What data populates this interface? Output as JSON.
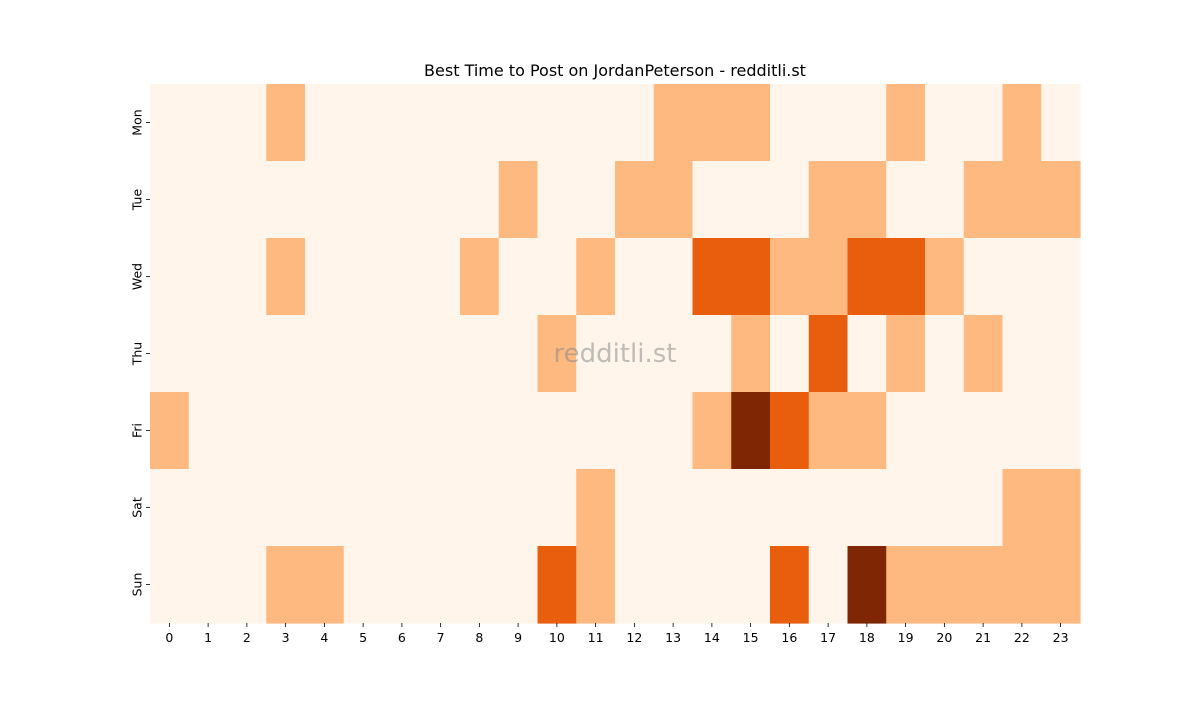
{
  "chart_data": {
    "type": "heatmap",
    "title": "Best Time to Post on JordanPeterson - redditli.st",
    "xlabel": "",
    "ylabel": "",
    "x_categories": [
      "0",
      "1",
      "2",
      "3",
      "4",
      "5",
      "6",
      "7",
      "8",
      "9",
      "10",
      "11",
      "12",
      "13",
      "14",
      "15",
      "16",
      "17",
      "18",
      "19",
      "20",
      "21",
      "22",
      "23"
    ],
    "y_categories": [
      "Mon",
      "Tue",
      "Wed",
      "Thu",
      "Fri",
      "Sat",
      "Sun"
    ],
    "values": [
      [
        0,
        0,
        0,
        1,
        0,
        0,
        0,
        0,
        0,
        0,
        0,
        0,
        0,
        1,
        1,
        1,
        0,
        0,
        0,
        1,
        0,
        0,
        1,
        0
      ],
      [
        0,
        0,
        0,
        0,
        0,
        0,
        0,
        0,
        0,
        1,
        0,
        0,
        1,
        1,
        0,
        0,
        0,
        1,
        1,
        0,
        0,
        1,
        1,
        1
      ],
      [
        0,
        0,
        0,
        1,
        0,
        0,
        0,
        0,
        1,
        0,
        0,
        1,
        0,
        0,
        2,
        2,
        1,
        1,
        2,
        2,
        1,
        0,
        0,
        0
      ],
      [
        0,
        0,
        0,
        0,
        0,
        0,
        0,
        0,
        0,
        0,
        1,
        0,
        0,
        0,
        0,
        1,
        0,
        2,
        0,
        1,
        0,
        1,
        0,
        0
      ],
      [
        1,
        0,
        0,
        0,
        0,
        0,
        0,
        0,
        0,
        0,
        0,
        0,
        0,
        0,
        1,
        3,
        2,
        1,
        1,
        0,
        0,
        0,
        0,
        0
      ],
      [
        0,
        0,
        0,
        0,
        0,
        0,
        0,
        0,
        0,
        0,
        0,
        1,
        0,
        0,
        0,
        0,
        0,
        0,
        0,
        0,
        0,
        0,
        1,
        1
      ],
      [
        0,
        0,
        0,
        1,
        1,
        0,
        0,
        0,
        0,
        0,
        2,
        1,
        0,
        0,
        0,
        0,
        2,
        0,
        3,
        1,
        1,
        1,
        1,
        1
      ]
    ],
    "colorscale": [
      "#fff5eb",
      "#fdb97f",
      "#e95e0d",
      "#7f2704"
    ],
    "colorbar": false,
    "watermark": "redditli.st"
  }
}
